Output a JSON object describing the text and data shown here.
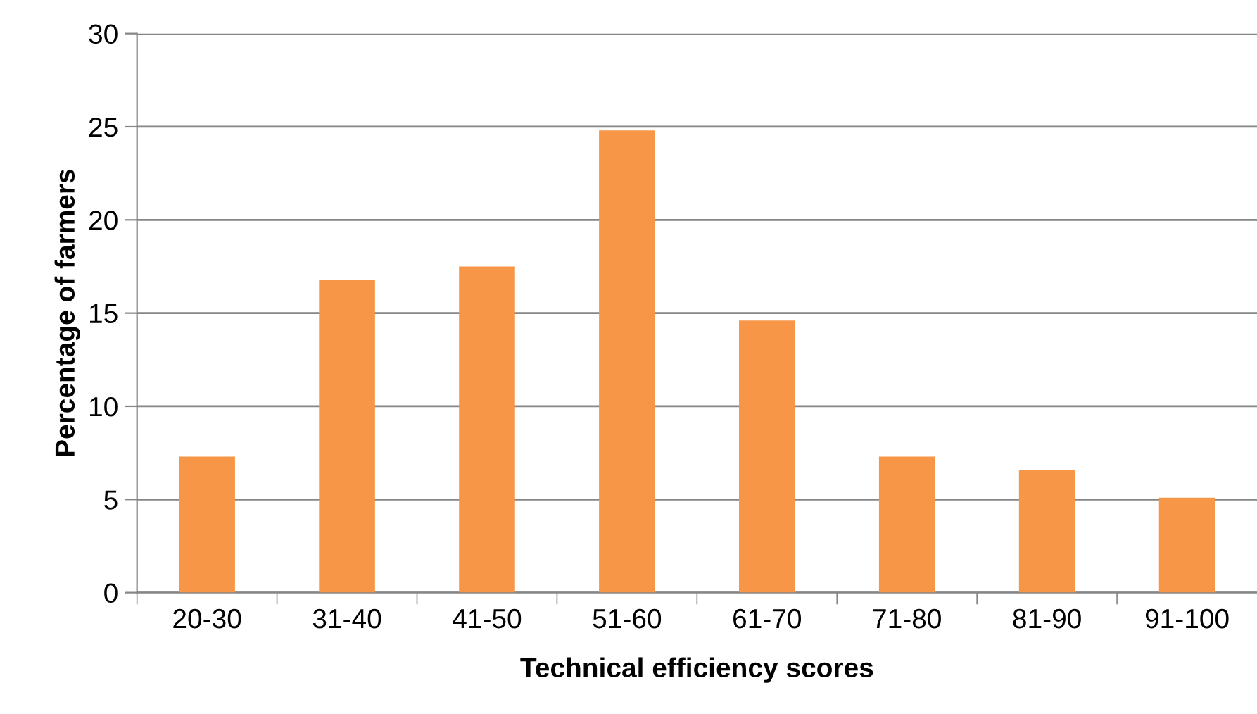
{
  "chart_data": {
    "type": "bar",
    "xlabel": "Technical efficiency scores",
    "ylabel": "Percentage of farmers",
    "categories": [
      "20-30",
      "31-40",
      "41-50",
      "51-60",
      "61-70",
      "71-80",
      "81-90",
      "91-100"
    ],
    "values": [
      7.3,
      16.8,
      17.5,
      24.8,
      14.6,
      7.3,
      6.6,
      5.1
    ],
    "color": "#f79646",
    "ylim": [
      0,
      30
    ],
    "yticks": [
      0,
      5,
      10,
      15,
      20,
      25,
      30
    ],
    "grid": "y"
  }
}
